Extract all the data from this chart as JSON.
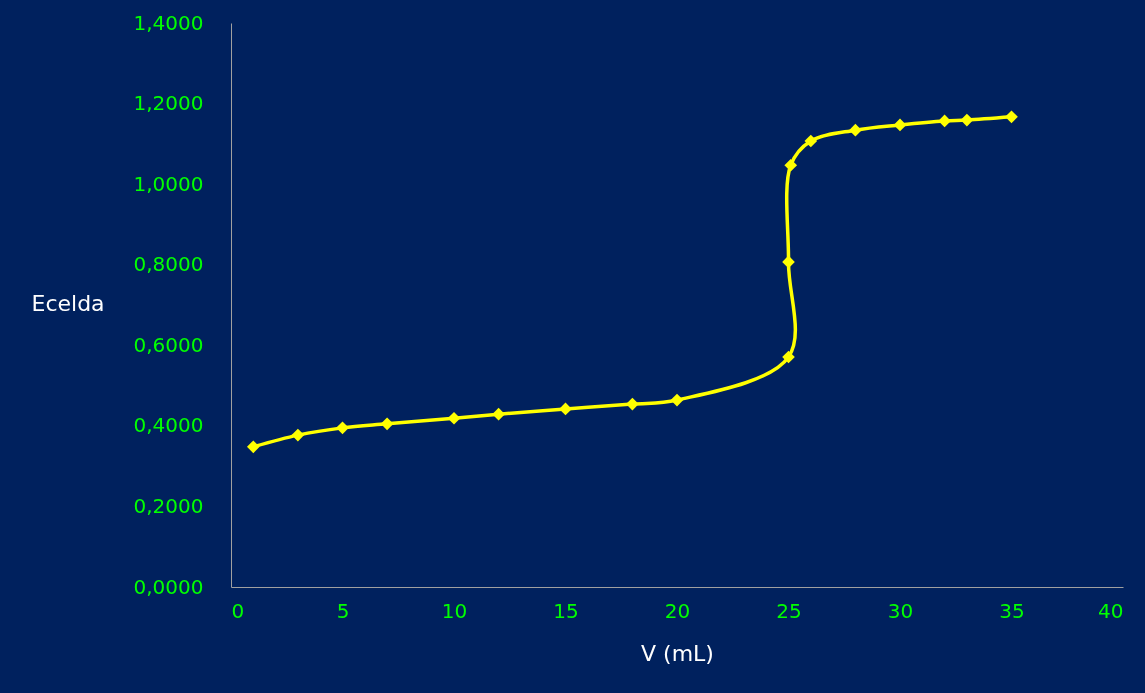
{
  "chart_data": {
    "type": "line",
    "xlabel": "V (mL)",
    "ylabel": "Ecelda",
    "x": [
      1,
      3,
      5,
      7,
      10,
      12,
      15,
      18,
      20,
      25,
      25,
      25.1,
      26,
      28,
      30,
      32,
      33,
      35
    ],
    "series": [
      {
        "color": "#ffff00",
        "values": [
          0.348,
          0.377,
          0.395,
          0.405,
          0.419,
          0.429,
          0.442,
          0.454,
          0.464,
          0.571,
          0.807,
          1.047,
          1.107,
          1.134,
          1.147,
          1.157,
          1.159,
          1.167
        ]
      }
    ],
    "xlim": [
      0,
      40
    ],
    "xticks": [
      0,
      5,
      10,
      15,
      20,
      25,
      30,
      35,
      40
    ],
    "ylim": [
      0,
      1.4
    ],
    "yticks": [
      {
        "value": 0,
        "label": "0,0000"
      },
      {
        "value": 0.2,
        "label": "0,2000"
      },
      {
        "value": 0.4,
        "label": "0,4000"
      },
      {
        "value": 0.6,
        "label": "0,6000"
      },
      {
        "value": 0.8,
        "label": "0,8000"
      },
      {
        "value": 1.0,
        "label": "1,0000"
      },
      {
        "value": 1.2,
        "label": "1,2000"
      },
      {
        "value": 1.4,
        "label": "1,4000"
      }
    ],
    "grid": false,
    "marker": "diamond",
    "line_style": "solid"
  }
}
